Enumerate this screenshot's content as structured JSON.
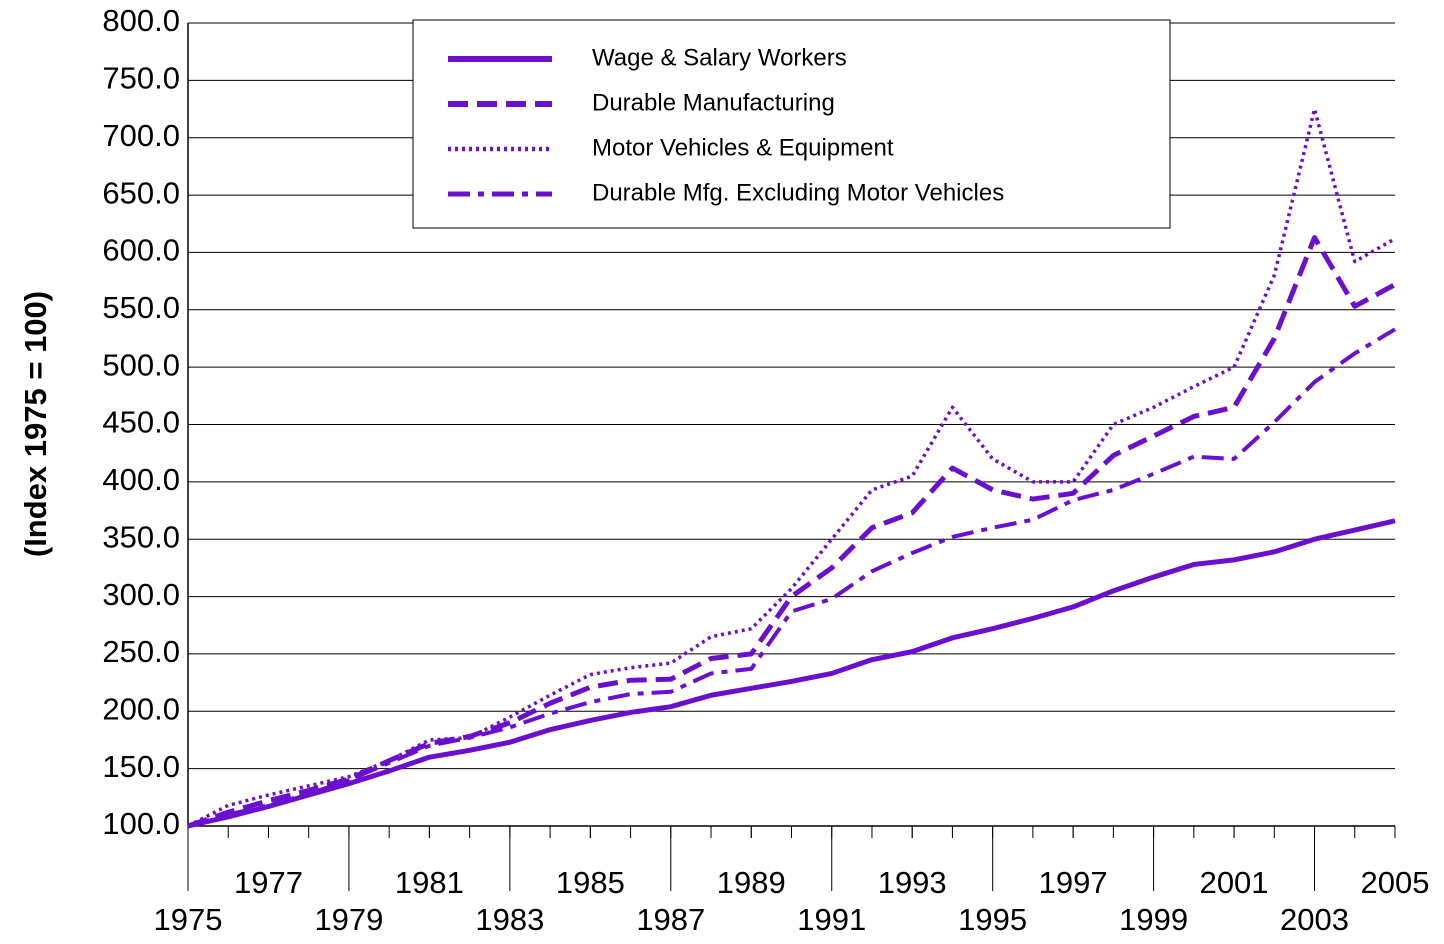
{
  "chart_data": {
    "type": "line",
    "y_label": "(Index 1975 = 100)",
    "x": [
      1975,
      1976,
      1977,
      1978,
      1979,
      1980,
      1981,
      1982,
      1983,
      1984,
      1985,
      1986,
      1987,
      1988,
      1989,
      1990,
      1991,
      1992,
      1993,
      1994,
      1995,
      1996,
      1997,
      1998,
      1999,
      2000,
      2001,
      2002,
      2003,
      2004,
      2005
    ],
    "xlim": [
      1975,
      2005
    ],
    "xticks": [
      1975,
      1977,
      1979,
      1981,
      1983,
      1985,
      1987,
      1989,
      1991,
      1993,
      1995,
      1997,
      1999,
      2001,
      2003,
      2005
    ],
    "ylim": [
      100,
      800
    ],
    "yticks": [
      {
        "value": 100,
        "label": "100.0"
      },
      {
        "value": 150,
        "label": "150.0"
      },
      {
        "value": 200,
        "label": "200.0"
      },
      {
        "value": 250,
        "label": "250.0"
      },
      {
        "value": 300,
        "label": "300.0"
      },
      {
        "value": 350,
        "label": "350.0"
      },
      {
        "value": 400,
        "label": "400.0"
      },
      {
        "value": 450,
        "label": "450.0"
      },
      {
        "value": 500,
        "label": "500.0"
      },
      {
        "value": 550,
        "label": "550.0"
      },
      {
        "value": 600,
        "label": "600.0"
      },
      {
        "value": 650,
        "label": "650.0"
      },
      {
        "value": 700,
        "label": "700.0"
      },
      {
        "value": 750,
        "label": "750.0"
      },
      {
        "value": 800,
        "label": "800.0"
      }
    ],
    "grid": true,
    "legend": "top",
    "series": [
      {
        "name": "Wage & Salary Workers",
        "color": "#6a0fd0",
        "dash": "solid",
        "values": [
          100,
          108,
          117,
          127,
          137,
          148,
          160,
          166,
          173,
          184,
          192,
          199,
          204,
          214,
          220,
          226,
          233,
          245,
          252,
          264,
          272,
          281,
          291,
          305,
          317,
          328,
          332,
          339,
          350,
          358,
          366
        ]
      },
      {
        "name": "Durable Manufacturing",
        "color": "#6a0fd0",
        "dash": "dashed",
        "values": [
          100,
          112,
          122,
          131,
          141,
          157,
          172,
          178,
          190,
          207,
          221,
          227,
          228,
          246,
          250,
          300,
          325,
          360,
          373,
          412,
          393,
          385,
          390,
          423,
          440,
          457,
          465,
          525,
          613,
          553,
          572
        ]
      },
      {
        "name": "Motor Vehicles & Equipment",
        "color": "#6a0fd0",
        "dash": "dotted",
        "values": [
          100,
          118,
          127,
          135,
          143,
          157,
          175,
          177,
          195,
          214,
          232,
          238,
          242,
          265,
          272,
          307,
          350,
          393,
          405,
          465,
          420,
          400,
          400,
          450,
          465,
          483,
          500,
          580,
          725,
          592,
          612
        ]
      },
      {
        "name": "Durable Mfg. Excluding Motor Vehicles",
        "color": "#6a0fd0",
        "dash": "dashdot",
        "values": [
          100,
          110,
          118,
          128,
          140,
          155,
          170,
          177,
          186,
          198,
          208,
          215,
          217,
          233,
          237,
          287,
          298,
          322,
          338,
          352,
          360,
          367,
          384,
          393,
          407,
          422,
          420,
          452,
          487,
          512,
          533
        ]
      }
    ]
  }
}
